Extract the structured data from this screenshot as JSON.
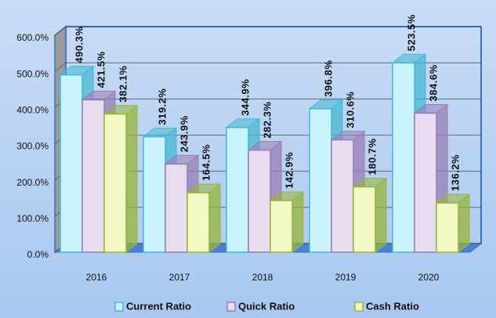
{
  "chart_data": {
    "type": "bar3d",
    "categories": [
      "2016",
      "2017",
      "2018",
      "2019",
      "2020"
    ],
    "series": [
      {
        "name": "Current Ratio",
        "color": "#c9f3fb",
        "edge": "#45b8d3",
        "values": [
          490.3,
          319.2,
          344.9,
          396.8,
          523.5
        ],
        "value_labels": [
          "490.3%",
          "319.2%",
          "344.9%",
          "396.8%",
          "523.5%"
        ]
      },
      {
        "name": "Quick Ratio",
        "color": "#e8dcf1",
        "edge": "#9a7db6",
        "values": [
          421.5,
          243.9,
          282.3,
          310.6,
          384.6
        ],
        "value_labels": [
          "421.5%",
          "243.9%",
          "282.3%",
          "310.6%",
          "384.6%"
        ]
      },
      {
        "name": "Cash Ratio",
        "color": "#f2f9c4",
        "edge": "#97b43a",
        "values": [
          382.1,
          164.5,
          142.9,
          180.7,
          136.2
        ],
        "value_labels": [
          "382.1%",
          "164.5%",
          "142.9%",
          "180.7%",
          "136.2%"
        ]
      }
    ],
    "ylim": [
      0,
      600
    ],
    "yticks": [
      {
        "value": 0,
        "label": "0.0%"
      },
      {
        "value": 100,
        "label": "100.0%"
      },
      {
        "value": 200,
        "label": "200.0%"
      },
      {
        "value": 300,
        "label": "300.0%"
      },
      {
        "value": 400,
        "label": "400.0%"
      },
      {
        "value": 500,
        "label": "500.0%"
      },
      {
        "value": 600,
        "label": "600.0%"
      }
    ],
    "grid": true,
    "legend": "bottom"
  }
}
